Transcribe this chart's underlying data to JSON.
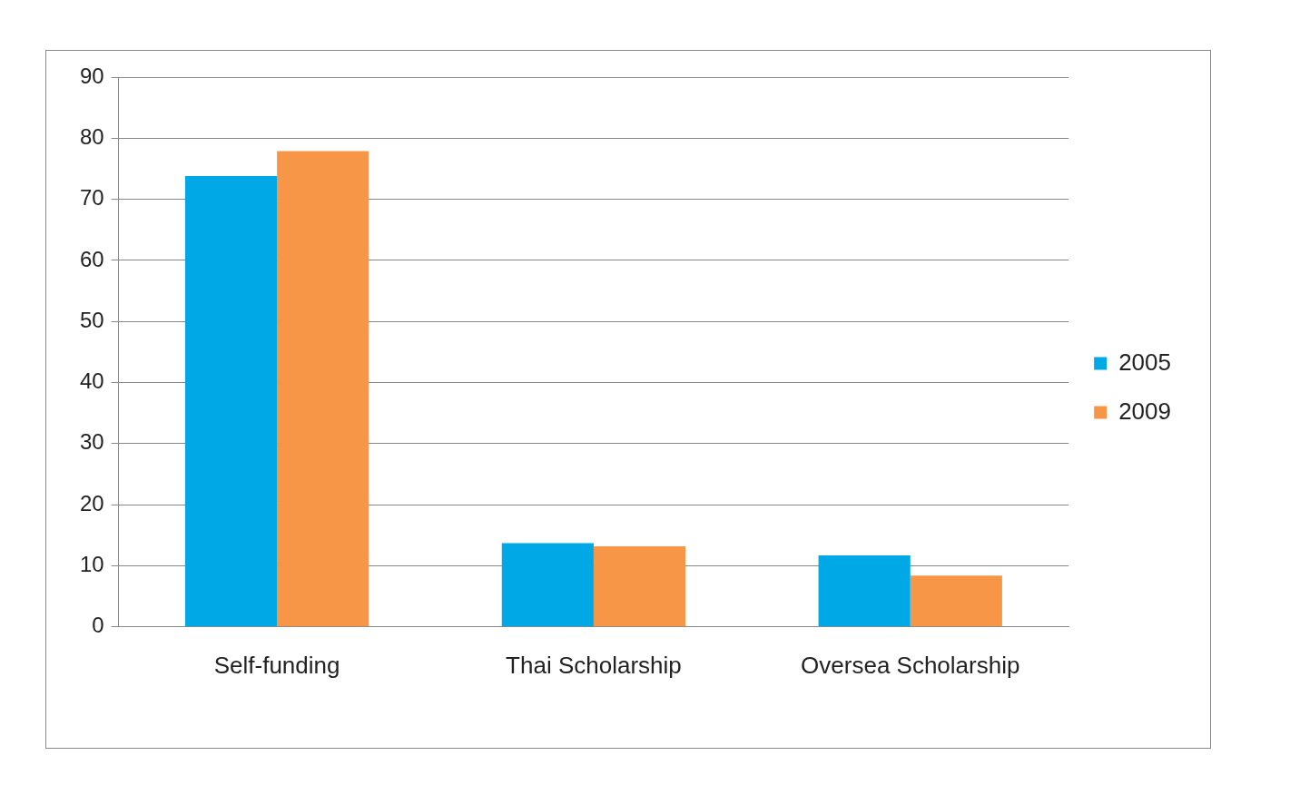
{
  "chart_data": {
    "type": "bar",
    "categories": [
      "Self-funding",
      "Thai Scholarship",
      "Oversea Scholarship"
    ],
    "series": [
      {
        "name": "2005",
        "color": "#00a8e6",
        "values": [
          73.8,
          13.7,
          11.7
        ]
      },
      {
        "name": "2009",
        "color": "#f79646",
        "values": [
          77.9,
          13.2,
          8.4
        ]
      }
    ],
    "ylim": [
      0,
      90
    ],
    "yticks": [
      0,
      10,
      20,
      30,
      40,
      50,
      60,
      70,
      80,
      90
    ],
    "grid": "y",
    "legend": "right"
  }
}
